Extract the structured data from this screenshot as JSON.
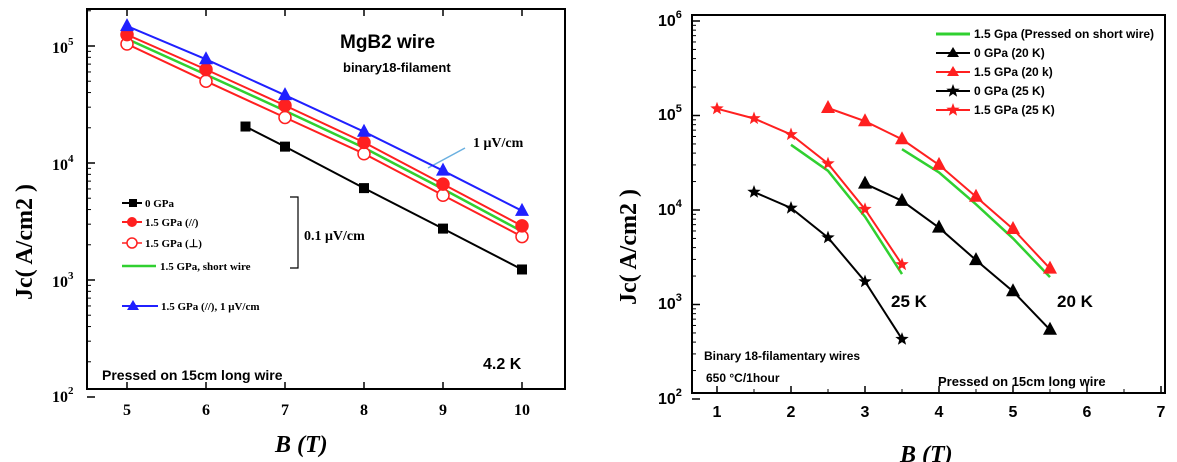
{
  "chart_data": [
    {
      "type": "line",
      "title": "MgB2 wire",
      "subtitle": "binary18-filament",
      "xlabel": "B (T)",
      "ylabel": "Jc( A/cm2 )",
      "x_ticks": [
        "5",
        "6",
        "7",
        "8",
        "9",
        "10"
      ],
      "y_ticks": [
        "10",
        "10",
        "10",
        "10",
        "10"
      ],
      "y_tick_exponents": [
        "2",
        "3",
        "4",
        "5",
        ""
      ],
      "xlim": [
        4.5,
        10.5
      ],
      "ylim": [
        100,
        200000
      ],
      "y_scale": "log",
      "annotations": {
        "temperature": "4.2 K",
        "note": "Pressed on 15cm long wire",
        "criterion_high": "1 μV/cm",
        "criterion_low": "0.1 μV/cm"
      },
      "legend_position": "left",
      "series": [
        {
          "name": "0 GPa",
          "color": "#000000",
          "marker": "square",
          "filled": true,
          "x": [
            6.5,
            7,
            8,
            9,
            10
          ],
          "y": [
            20500,
            13800,
            6100,
            2750,
            1230
          ]
        },
        {
          "name": "1.5 GPa (//)",
          "color": "#ff2020",
          "marker": "circle",
          "filled": true,
          "x": [
            5,
            6,
            7,
            8,
            9,
            10
          ],
          "y": [
            125000,
            63000,
            31000,
            15000,
            6600,
            2900
          ]
        },
        {
          "name": "1.5 GPa (⊥)",
          "color": "#ff2020",
          "marker": "circle",
          "filled": false,
          "x": [
            5,
            6,
            7,
            8,
            9,
            10
          ],
          "y": [
            104000,
            50000,
            24500,
            12000,
            5300,
            2350
          ]
        },
        {
          "name": "1.5 GPa, short wire",
          "color": "#30d030",
          "marker": "none",
          "filled": false,
          "x": [
            5,
            6,
            7,
            8,
            9,
            10
          ],
          "y": [
            115000,
            57000,
            28000,
            13500,
            6000,
            2600
          ]
        },
        {
          "name": "1.5 GPa (//), 1 μV/cm",
          "color": "#2020ff",
          "marker": "triangle",
          "filled": true,
          "x": [
            5,
            6,
            7,
            8,
            9,
            10
          ],
          "y": [
            148000,
            77000,
            38000,
            18500,
            8600,
            3900
          ]
        }
      ]
    },
    {
      "type": "line",
      "xlabel": "B (T)",
      "ylabel": "Jc( A/cm2 )",
      "x_ticks": [
        "1",
        "2",
        "3",
        "4",
        "5",
        "6",
        "7"
      ],
      "y_ticks": [
        "10",
        "10",
        "10",
        "10",
        "10"
      ],
      "y_tick_exponents": [
        "2",
        "3",
        "4",
        "5",
        "6"
      ],
      "xlim": [
        0.6,
        7
      ],
      "ylim": [
        100,
        1000000
      ],
      "y_scale": "log",
      "annotations": {
        "label_25k": "25 K",
        "label_20k": "20 K",
        "note1": "Binary 18-filamentary wires",
        "note2": "650 °C/1hour",
        "note3": "Pressed on 15cm long wire"
      },
      "legend_position": "top-right",
      "series": [
        {
          "name": "1.5 Gpa (Pressed on short wire)",
          "color": "#30d030",
          "marker": "none",
          "filled": false,
          "segments": [
            {
              "x": [
                2,
                2.5,
                3,
                3.5
              ],
              "y": [
                49000,
                26000,
                8500,
                2100
              ]
            },
            {
              "x": [
                3.5,
                4,
                4.5,
                5,
                5.5
              ],
              "y": [
                44000,
                25000,
                11500,
                5000,
                1950
              ]
            }
          ]
        },
        {
          "name": "0 GPa (20 K)",
          "color": "#000000",
          "marker": "triangle",
          "filled": true,
          "x": [
            3,
            3.5,
            4,
            4.5,
            5,
            5.5
          ],
          "y": [
            19000,
            12500,
            6500,
            2950,
            1380,
            540
          ]
        },
        {
          "name": "1.5 GPa (20 k)",
          "color": "#ff2020",
          "marker": "triangle",
          "filled": true,
          "x": [
            2.5,
            3,
            3.5,
            4,
            4.5,
            5,
            5.5
          ],
          "y": [
            120000,
            87000,
            56000,
            30000,
            13800,
            6300,
            2400
          ]
        },
        {
          "name": "0 GPa (25 K)",
          "color": "#000000",
          "marker": "star",
          "filled": true,
          "x": [
            1.5,
            2,
            2.5,
            3,
            3.5
          ],
          "y": [
            15500,
            10500,
            5100,
            1750,
            430
          ]
        },
        {
          "name": "1.5 GPa (25 K)",
          "color": "#ff2020",
          "marker": "star",
          "filled": true,
          "x": [
            1,
            1.5,
            2,
            2.5,
            3,
            3.5
          ],
          "y": [
            118000,
            93000,
            63000,
            31000,
            10200,
            2650
          ]
        }
      ]
    }
  ]
}
